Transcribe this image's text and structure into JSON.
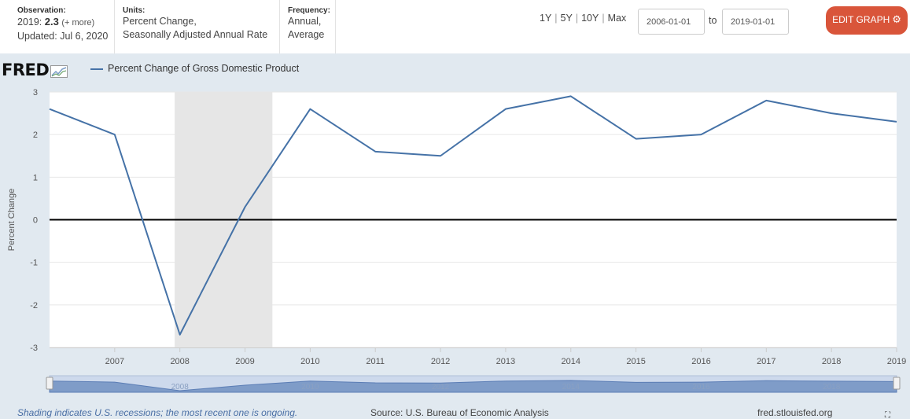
{
  "observation": {
    "label": "Observation:",
    "date": "2019:",
    "value": "2.3",
    "more": "(+ more)",
    "updated": "Updated: Jul 6, 2020"
  },
  "units": {
    "label": "Units:",
    "line1": "Percent Change,",
    "line2": "Seasonally Adjusted Annual Rate"
  },
  "frequency": {
    "label": "Frequency:",
    "line1": "Annual,",
    "line2": "Average"
  },
  "ranges": [
    "1Y",
    "5Y",
    "10Y",
    "Max"
  ],
  "date_range": {
    "start": "2006-01-01",
    "to": "to",
    "end": "2019-01-01"
  },
  "edit_button": "EDIT GRAPH",
  "logo_text": "FRED",
  "footer": {
    "recession_note": "Shading indicates U.S. recessions; the most recent one is ongoing.",
    "source": "Source: U.S. Bureau of Economic Analysis",
    "site": "fred.stlouisfed.org"
  },
  "colors": {
    "series": "#4572a7",
    "recession": "#e6e6e6",
    "edit_button": "#d9553a",
    "panel_bg": "#e1e9f0"
  },
  "chart_data": {
    "type": "line",
    "title": "",
    "xlabel": "",
    "ylabel": "Percent Change",
    "ylim": [
      -3,
      3
    ],
    "xlim": [
      2006,
      2019
    ],
    "grid": true,
    "legend_position": "top-left",
    "x_ticks": [
      "2007",
      "2008",
      "2009",
      "2010",
      "2011",
      "2012",
      "2013",
      "2014",
      "2015",
      "2016",
      "2017",
      "2018",
      "2019"
    ],
    "y_ticks": [
      "3",
      "2",
      "1",
      "0",
      "-1",
      "-2",
      "-3"
    ],
    "series": [
      {
        "name": "Percent Change of Gross Domestic Product",
        "x": [
          2006,
          2007,
          2008,
          2009,
          2010,
          2011,
          2012,
          2013,
          2014,
          2015,
          2016,
          2017,
          2018,
          2019
        ],
        "values": [
          2.6,
          2.0,
          -2.7,
          0.3,
          2.6,
          1.6,
          1.5,
          2.6,
          2.9,
          1.9,
          2.0,
          2.8,
          2.5,
          2.3
        ]
      }
    ],
    "recessions": [
      [
        2007.92,
        2009.42
      ]
    ],
    "navigator_labels": [
      "2008",
      "2010",
      "2012",
      "2014",
      "2016",
      "2018"
    ]
  }
}
